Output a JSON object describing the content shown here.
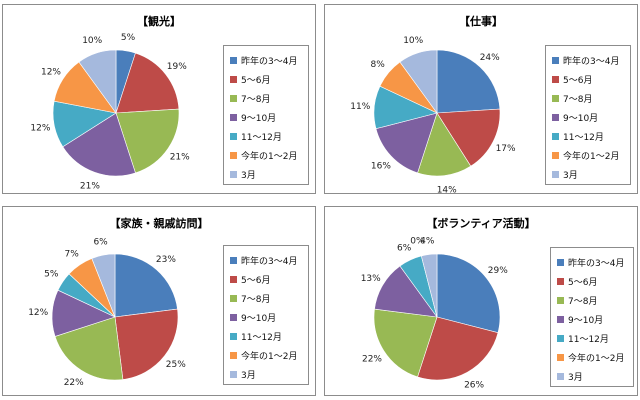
{
  "chart_data": [
    {
      "type": "pie",
      "title": "【観光】",
      "categories": [
        "昨年の3～4月",
        "5～6月",
        "7～8月",
        "9～10月",
        "11～12月",
        "今年の1～2月",
        "3月"
      ],
      "values": [
        5,
        19,
        21,
        21,
        12,
        12,
        10
      ],
      "labels": [
        "5%",
        "19%",
        "21%",
        "21%",
        "12%",
        "12%",
        "10%"
      ],
      "legend": "right"
    },
    {
      "type": "pie",
      "title": "【仕事】",
      "categories": [
        "昨年の3～4月",
        "5～6月",
        "7～8月",
        "9～10月",
        "11～12月",
        "今年の1～2月",
        "3月"
      ],
      "values": [
        24,
        17,
        14,
        16,
        11,
        8,
        10
      ],
      "labels": [
        "24%",
        "17%",
        "14%",
        "16%",
        "11%",
        "8%",
        "10%"
      ],
      "legend": "right"
    },
    {
      "type": "pie",
      "title": "【家族・親戚訪問】",
      "categories": [
        "昨年の3～4月",
        "5～6月",
        "7～8月",
        "9～10月",
        "11～12月",
        "今年の1～2月",
        "3月"
      ],
      "values": [
        23,
        25,
        22,
        12,
        5,
        7,
        6
      ],
      "labels": [
        "23%",
        "25%",
        "22%",
        "12%",
        "5%",
        "7%",
        "6%"
      ],
      "legend": "right"
    },
    {
      "type": "pie",
      "title": "【ボランティア活動】",
      "categories": [
        "昨年の3～4月",
        "5～6月",
        "7～8月",
        "9～10月",
        "11～12月",
        "今年の1～2月",
        "3月"
      ],
      "values": [
        29,
        26,
        22,
        13,
        6,
        0,
        4
      ],
      "labels": [
        "29%",
        "26%",
        "22%",
        "13%",
        "6%",
        "0%",
        "4%"
      ],
      "legend": "right"
    }
  ],
  "colors": [
    "#4a7ebb",
    "#be4b48",
    "#98b954",
    "#7d60a0",
    "#46aac5",
    "#f79646",
    "#a5b9dd"
  ]
}
